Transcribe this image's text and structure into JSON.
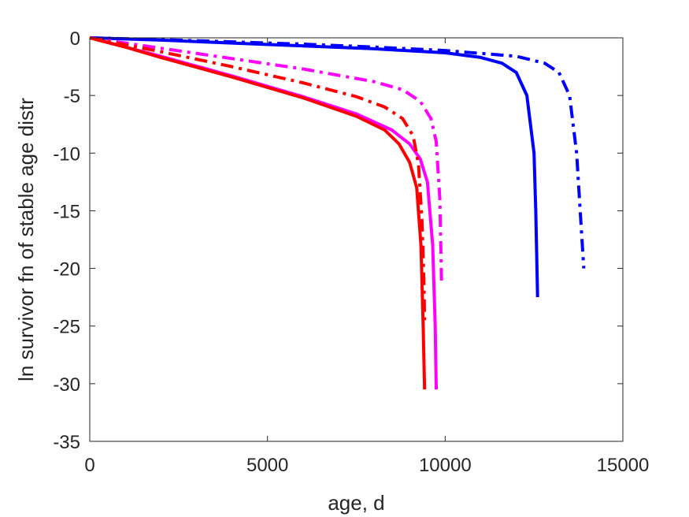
{
  "chart_data": {
    "type": "line",
    "title": "",
    "xlabel": "age, d",
    "ylabel": "ln survivor fn of stable age distr",
    "xlim": [
      0,
      15000
    ],
    "ylim": [
      -35,
      0
    ],
    "xticks": [
      0,
      5000,
      10000,
      15000
    ],
    "yticks": [
      0,
      -5,
      -10,
      -15,
      -20,
      -25,
      -30,
      -35
    ],
    "xtick_labels": [
      "0",
      "5000",
      "10000",
      "15000"
    ],
    "ytick_labels": [
      "0",
      "-5",
      "-10",
      "-15",
      "-20",
      "-25",
      "-30",
      "-35"
    ],
    "grid": false,
    "legend": "none",
    "series": [
      {
        "color": "#0000ff",
        "style": "solid",
        "x": [
          0,
          2000,
          4000,
          6000,
          8000,
          10000,
          11000,
          11600,
          12000,
          12300,
          12500,
          12550,
          12600
        ],
        "y": [
          0,
          -0.2,
          -0.45,
          -0.7,
          -0.95,
          -1.3,
          -1.7,
          -2.2,
          -3.0,
          -5.0,
          -10.0,
          -15.0,
          -22.5
        ]
      },
      {
        "color": "#0000ff",
        "style": "dashdot",
        "x": [
          0,
          2000,
          4000,
          6000,
          8000,
          10000,
          12000,
          12800,
          13200,
          13500,
          13700,
          13800,
          13900
        ],
        "y": [
          0,
          -0.15,
          -0.35,
          -0.55,
          -0.8,
          -1.1,
          -1.6,
          -2.2,
          -3.0,
          -5.0,
          -10.0,
          -15.0,
          -20.0
        ]
      },
      {
        "color": "#ff00ff",
        "style": "solid",
        "x": [
          0,
          1000,
          2000,
          4000,
          6000,
          7500,
          8500,
          9000,
          9300,
          9500,
          9650,
          9720,
          9750
        ],
        "y": [
          0,
          -0.8,
          -1.6,
          -3.3,
          -5.1,
          -6.6,
          -8.0,
          -9.2,
          -10.5,
          -12.5,
          -18.0,
          -25.0,
          -30.5
        ]
      },
      {
        "color": "#ff00ff",
        "style": "dashdot",
        "x": [
          0,
          2000,
          4000,
          6000,
          8000,
          8800,
          9300,
          9600,
          9750,
          9850,
          9900
        ],
        "y": [
          0,
          -0.9,
          -1.8,
          -2.7,
          -3.8,
          -4.5,
          -5.5,
          -7.0,
          -9.0,
          -14.0,
          -21.5
        ]
      },
      {
        "color": "#ff0000",
        "style": "solid",
        "x": [
          0,
          1000,
          2000,
          4000,
          6000,
          7500,
          8300,
          8700,
          9000,
          9200,
          9320,
          9380,
          9420
        ],
        "y": [
          0,
          -0.8,
          -1.7,
          -3.4,
          -5.2,
          -6.8,
          -8.0,
          -9.2,
          -10.8,
          -13.0,
          -18.0,
          -25.0,
          -30.5
        ]
      },
      {
        "color": "#ff0000",
        "style": "dashdot",
        "x": [
          0,
          2000,
          4000,
          6000,
          7500,
          8300,
          8800,
          9100,
          9250,
          9350,
          9400,
          9420
        ],
        "y": [
          0,
          -1.2,
          -2.5,
          -3.9,
          -5.1,
          -6.0,
          -7.0,
          -8.5,
          -11.0,
          -16.0,
          -21.0,
          -24.5
        ]
      }
    ]
  }
}
